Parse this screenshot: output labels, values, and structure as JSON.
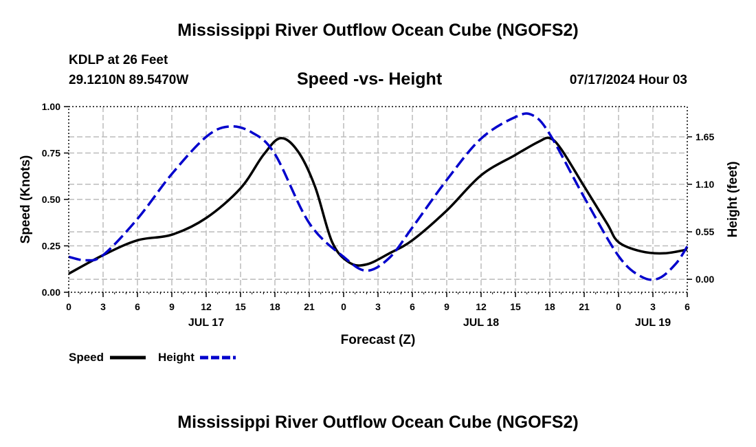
{
  "page": {
    "title_top": "Mississippi River Outflow Ocean Cube (NGOFS2)",
    "title_bottom": "Mississippi River Outflow Ocean Cube (NGOFS2)",
    "station": "KDLP at 26 Feet",
    "coords": "29.1210N  89.5470W",
    "chart_title": "Speed -vs- Height",
    "date": "07/17/2024 Hour 03"
  },
  "colors": {
    "speed": "#000000",
    "height": "#0000cc",
    "grid": "#bbbbbb"
  },
  "chart_data": {
    "type": "line",
    "title": "Speed -vs- Height",
    "xlabel": "Forecast (Z)",
    "ylabel": "Speed (Knots)",
    "y2label": "Height (feet)",
    "xlim": [
      0,
      54
    ],
    "ylim": [
      0,
      1.0
    ],
    "y2lim": [
      -0.15,
      2.0
    ],
    "grid": true,
    "x_ticks": [
      0,
      3,
      6,
      9,
      12,
      15,
      18,
      21,
      24,
      27,
      30,
      33,
      36,
      39,
      42,
      45,
      48,
      51,
      54
    ],
    "x_tick_labels": [
      "0",
      "3",
      "6",
      "9",
      "12",
      "15",
      "18",
      "21",
      "0",
      "3",
      "6",
      "9",
      "12",
      "15",
      "18",
      "21",
      "0",
      "3",
      "6"
    ],
    "day_labels": [
      {
        "x": 12,
        "label": "JUL 17"
      },
      {
        "x": 36,
        "label": "JUL 18"
      },
      {
        "x": 51,
        "label": "JUL 19"
      }
    ],
    "y_ticks": [
      0,
      0.25,
      0.5,
      0.75,
      1.0
    ],
    "y_tick_labels": [
      "0.00",
      "0.25",
      "0.50",
      "0.75",
      "1.00"
    ],
    "y2_ticks": [
      0,
      0.55,
      1.1,
      1.65
    ],
    "y2_tick_labels": [
      "0.00",
      "0.55",
      "1.10",
      "1.65"
    ],
    "legend": [
      {
        "name": "Speed",
        "style": "solid"
      },
      {
        "name": "Height",
        "style": "dashed"
      }
    ],
    "series": [
      {
        "name": "Speed",
        "axis": "left",
        "x": [
          0,
          3,
          6,
          9,
          12,
          15,
          17,
          18.5,
          20,
          21.5,
          23,
          24.5,
          26,
          28,
          30,
          33,
          36,
          39,
          41,
          42,
          43,
          45,
          47,
          48,
          50,
          52,
          54
        ],
        "values": [
          0.1,
          0.2,
          0.28,
          0.31,
          0.4,
          0.56,
          0.74,
          0.83,
          0.76,
          0.57,
          0.27,
          0.16,
          0.15,
          0.21,
          0.28,
          0.44,
          0.63,
          0.74,
          0.81,
          0.83,
          0.77,
          0.57,
          0.37,
          0.27,
          0.22,
          0.21,
          0.23
        ]
      },
      {
        "name": "Height",
        "axis": "right",
        "x": [
          0,
          1.5,
          3,
          6,
          9,
          12,
          14,
          16,
          18,
          21,
          24,
          26,
          28,
          30,
          33,
          36,
          39,
          40.5,
          42,
          45,
          48,
          50,
          51.5,
          53,
          54
        ],
        "values": [
          0.26,
          0.22,
          0.28,
          0.7,
          1.22,
          1.65,
          1.77,
          1.7,
          1.45,
          0.65,
          0.26,
          0.1,
          0.25,
          0.6,
          1.15,
          1.63,
          1.88,
          1.9,
          1.68,
          0.95,
          0.27,
          0.03,
          0.01,
          0.18,
          0.38
        ]
      }
    ]
  }
}
